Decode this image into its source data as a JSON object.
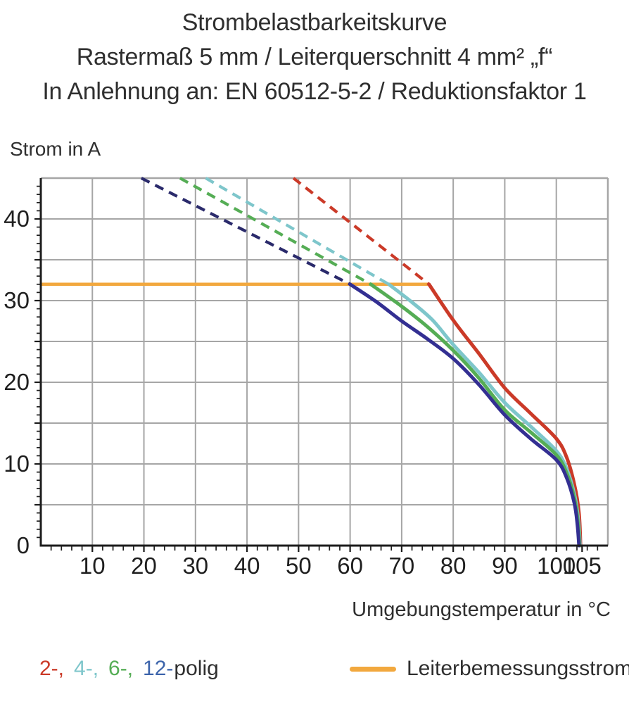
{
  "chart_data": {
    "type": "line",
    "title": "Strombelastbarkeitskurve",
    "subtitle": "Rastermaß 5 mm / Leiterquerschnitt 4 mm² „f“",
    "note": "In Anlehnung an: EN 60512-5-2 / Reduktionsfaktor 1",
    "xlabel": "Umgebungstemperatur in °C",
    "ylabel": "Strom in A",
    "xlim": [
      0,
      110
    ],
    "ylim": [
      0,
      45
    ],
    "x_tick_labels": [
      10,
      20,
      30,
      40,
      50,
      60,
      70,
      80,
      90,
      100,
      105
    ],
    "y_tick_labels": [
      0,
      10,
      20,
      30,
      40
    ],
    "x_grid_step": 10,
    "y_grid_step": 5,
    "x_minor_tick_step": 2,
    "y_minor_tick_step": 1,
    "grid_on": true,
    "grid_color": "#a6a6a6",
    "axis_color": "#1c1c1c",
    "tick_label_color": "#1f1f1f",
    "series": [
      {
        "name": "2-polig",
        "color": "#cb3a28",
        "dashed": [
          [
            49,
            45
          ],
          [
            75.3,
            32
          ]
        ],
        "solid": [
          [
            75.3,
            32
          ],
          [
            80,
            27.6
          ],
          [
            85,
            23.5
          ],
          [
            90,
            19.3
          ],
          [
            95,
            16.2
          ],
          [
            100,
            13.1
          ],
          [
            102,
            10.8
          ],
          [
            103.5,
            7.5
          ],
          [
            104.4,
            4
          ],
          [
            104.7,
            0
          ]
        ]
      },
      {
        "name": "4-polig",
        "color": "#7ec6cb",
        "dashed": [
          [
            32,
            45
          ],
          [
            67.5,
            32
          ]
        ],
        "solid": [
          [
            67.5,
            32
          ],
          [
            72,
            29.8
          ],
          [
            76,
            27.6
          ],
          [
            80,
            24.6
          ],
          [
            85,
            21.2
          ],
          [
            90,
            17.5
          ],
          [
            95,
            14.6
          ],
          [
            100,
            11.6
          ],
          [
            102,
            9.4
          ],
          [
            103.5,
            6.3
          ],
          [
            104.3,
            3
          ],
          [
            104.6,
            0
          ]
        ]
      },
      {
        "name": "6-polig",
        "color": "#55ad55",
        "dashed": [
          [
            27,
            45
          ],
          [
            64,
            32
          ]
        ],
        "solid": [
          [
            64,
            32
          ],
          [
            70,
            29.3
          ],
          [
            75,
            26.8
          ],
          [
            80,
            23.9
          ],
          [
            85,
            20.5
          ],
          [
            90,
            16.6
          ],
          [
            95,
            13.9
          ],
          [
            100,
            11.1
          ],
          [
            102,
            8.9
          ],
          [
            103.5,
            5.8
          ],
          [
            104.2,
            2.8
          ],
          [
            104.5,
            0
          ]
        ]
      },
      {
        "name": "12-polig",
        "color": "#332f92",
        "dash_color": "#2a2a6b",
        "dashed": [
          [
            19.5,
            45
          ],
          [
            60,
            32
          ]
        ],
        "solid": [
          [
            60,
            32
          ],
          [
            65,
            29.9
          ],
          [
            70,
            27.5
          ],
          [
            75,
            25.3
          ],
          [
            80,
            22.9
          ],
          [
            85,
            19.7
          ],
          [
            90,
            16
          ],
          [
            95,
            13.1
          ],
          [
            100,
            10.5
          ],
          [
            102,
            8.3
          ],
          [
            103.5,
            5.2
          ],
          [
            104.1,
            2.5
          ],
          [
            104.4,
            0
          ]
        ]
      }
    ],
    "reference_line": {
      "label": "Leiterbemessungsstrom",
      "color": "#f2a83e",
      "y": 32,
      "x_start": 0,
      "x_end": 75.3
    }
  },
  "legend": {
    "items": [
      {
        "text": "2-,",
        "color": "#cb3a28"
      },
      {
        "text": "4-,",
        "color": "#7ec6cb"
      },
      {
        "text": "6-,",
        "color": "#55ad55"
      },
      {
        "text": "12-",
        "color": "#3c64ab"
      }
    ],
    "suffix": "polig",
    "reference_label": "Leiterbemessungsstrom",
    "reference_color": "#f2a83e"
  }
}
